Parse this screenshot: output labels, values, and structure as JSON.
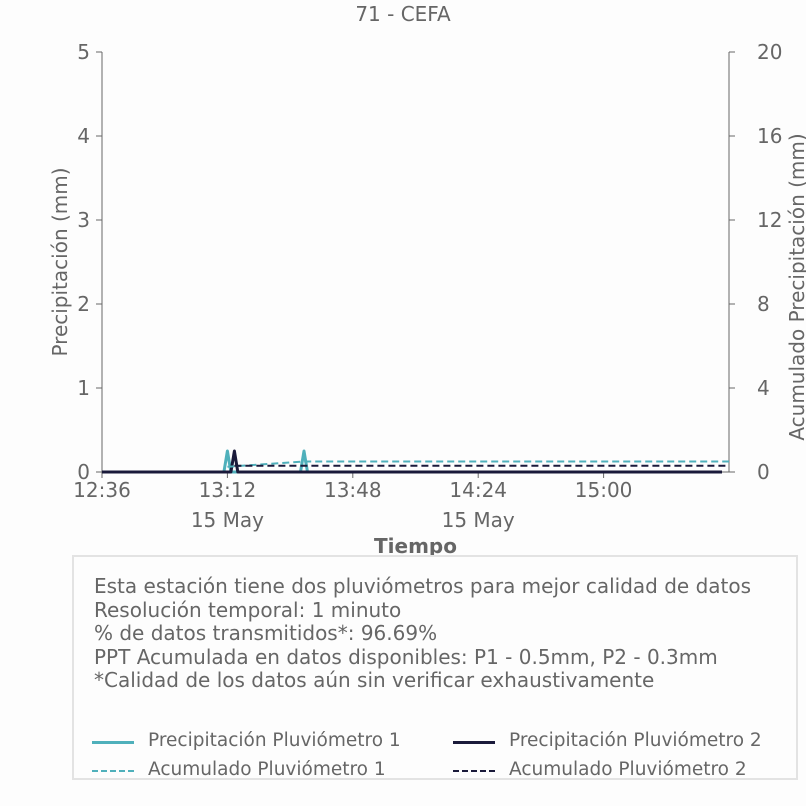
{
  "chart_data": {
    "type": "line",
    "title": "71 - CEFA",
    "xlabel": "Tiempo",
    "ylabel_left": "Precipitación (mm)",
    "ylabel_right": "Acumulado Precipitación (mm)",
    "ylim_left": [
      0,
      5
    ],
    "yticks_left": [
      "0",
      "1",
      "2",
      "3",
      "4",
      "5"
    ],
    "ylim_right": [
      0,
      20
    ],
    "yticks_right": [
      "0",
      "4",
      "8",
      "12",
      "16",
      "20"
    ],
    "xlim": [
      "12:36",
      "15:36"
    ],
    "xticks": [
      {
        "time": "12:36",
        "label": "12:36",
        "date": ""
      },
      {
        "time": "13:12",
        "label": "13:12",
        "date": "15 May"
      },
      {
        "time": "13:48",
        "label": "13:48",
        "date": ""
      },
      {
        "time": "14:24",
        "label": "14:24",
        "date": "15 May"
      },
      {
        "time": "15:00",
        "label": "15:00",
        "date": ""
      }
    ],
    "grid": false,
    "series": [
      {
        "name": "Precipitación Pluviómetro 1",
        "axis": "left",
        "style": "solid",
        "color": "#4fb0bb",
        "points": [
          [
            "12:36",
            0
          ],
          [
            "13:11",
            0
          ],
          [
            "13:12",
            0.25
          ],
          [
            "13:13",
            0
          ],
          [
            "13:33",
            0
          ],
          [
            "13:34",
            0.25
          ],
          [
            "13:35",
            0
          ],
          [
            "15:34",
            0
          ]
        ]
      },
      {
        "name": "Precipitación Pluviómetro 2",
        "axis": "left",
        "style": "solid",
        "color": "#1a1a3a",
        "points": [
          [
            "12:36",
            0
          ],
          [
            "13:13",
            0
          ],
          [
            "13:14",
            0.25
          ],
          [
            "13:15",
            0
          ],
          [
            "15:34",
            0
          ]
        ]
      },
      {
        "name": "Acumulado Pluviómetro 1",
        "axis": "right",
        "style": "dashed",
        "color": "#4fb0bb",
        "points": [
          [
            "13:12",
            0.25
          ],
          [
            "13:34",
            0.5
          ],
          [
            "15:36",
            0.5
          ]
        ]
      },
      {
        "name": "Acumulado Pluviómetro 2",
        "axis": "right",
        "style": "dashed",
        "color": "#1a1a3a",
        "points": [
          [
            "13:14",
            0.3
          ],
          [
            "15:36",
            0.3
          ]
        ]
      }
    ]
  },
  "info": {
    "lines": [
      "Esta estación tiene dos pluviómetros para mejor calidad de datos",
      "Resolución temporal: 1 minuto",
      "% de datos transmitidos*: 96.69%",
      "PPT Acumulada en datos disponibles: P1 - 0.5mm, P2 - 0.3mm",
      "*Calidad de los datos aún sin verificar exhaustivamente"
    ]
  },
  "legend": [
    {
      "label": "Precipitación Pluviómetro 1",
      "color": "#4fb0bb",
      "style": "solid"
    },
    {
      "label": "Precipitación Pluviómetro 2",
      "color": "#1a1a3a",
      "style": "solid"
    },
    {
      "label": "Acumulado Pluviómetro 1",
      "color": "#4fb0bb",
      "style": "dashed"
    },
    {
      "label": "Acumulado Pluviómetro 2",
      "color": "#1a1a3a",
      "style": "dashed"
    }
  ]
}
